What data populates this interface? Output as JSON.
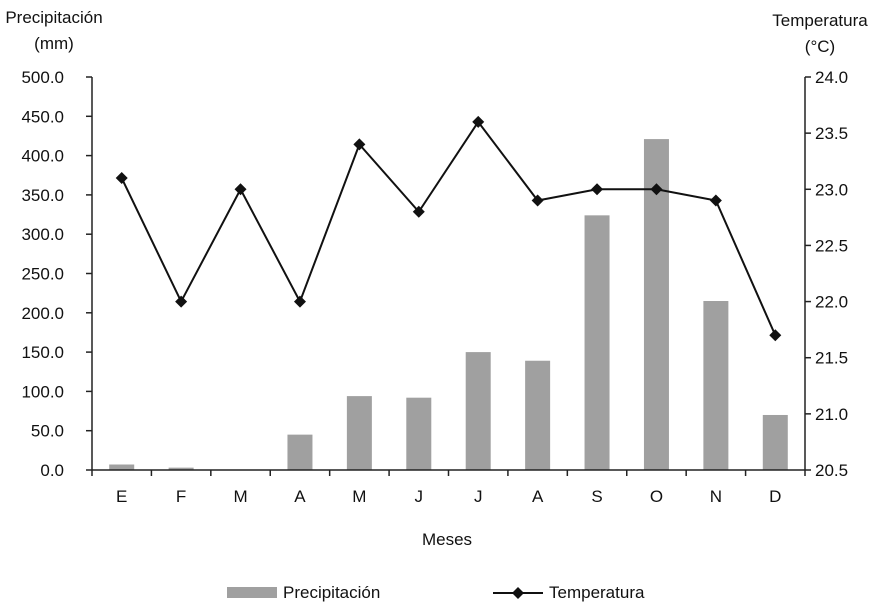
{
  "chart_data": {
    "type": "bar+line",
    "categories": [
      "E",
      "F",
      "M",
      "A",
      "M",
      "J",
      "J",
      "A",
      "S",
      "O",
      "N",
      "D"
    ],
    "xlabel": "Meses",
    "ylabel_left": [
      "Precipitación",
      "(mm)"
    ],
    "ylabel_right": [
      "Temperatura",
      "(°C)"
    ],
    "left_axis": {
      "ylim": [
        0,
        500
      ],
      "ticks": [
        "0.0",
        "50.0",
        "100.0",
        "150.0",
        "200.0",
        "250.0",
        "300.0",
        "350.0",
        "400.0",
        "450.0",
        "500.0"
      ]
    },
    "right_axis": {
      "ylim": [
        20.5,
        24.0
      ],
      "ticks": [
        "20.5",
        "21.0",
        "21.5",
        "22.0",
        "22.5",
        "23.0",
        "23.5",
        "24.0"
      ]
    },
    "series": [
      {
        "name": "Precipitación",
        "type": "bar",
        "axis": "left",
        "color": "#a0a0a0",
        "values": [
          7,
          3,
          0,
          45,
          94,
          92,
          150,
          139,
          324,
          421,
          215,
          70
        ]
      },
      {
        "name": "Temperatura",
        "type": "line",
        "axis": "right",
        "color": "#111111",
        "marker": "diamond",
        "values": [
          23.1,
          22.0,
          23.0,
          22.0,
          23.4,
          22.8,
          23.6,
          22.9,
          23.0,
          23.0,
          22.9,
          21.7
        ]
      }
    ],
    "legend": {
      "placement": "bottom",
      "items": [
        "Precipitación",
        "Temperatura"
      ]
    },
    "grid": false
  }
}
